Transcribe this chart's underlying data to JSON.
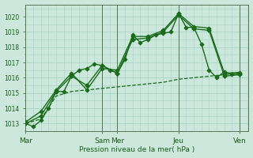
{
  "bg_color": "#cce8dc",
  "grid_color": "#a8d4c4",
  "line_color": "#1a6b1a",
  "marker_color": "#1a6b1a",
  "xlabel": "Pression niveau de la mer( hPa )",
  "xlabel_color": "#1a5c1a",
  "tick_color": "#1a5c1a",
  "ylim": [
    1012.5,
    1020.8
  ],
  "yticks": [
    1013,
    1014,
    1015,
    1016,
    1017,
    1018,
    1019,
    1020
  ],
  "day_labels": [
    "Mar",
    "Sam",
    "Mer",
    "Jeu",
    "Ven"
  ],
  "day_positions": [
    0,
    60,
    72,
    120,
    168
  ],
  "xlim": [
    0,
    175
  ],
  "series": [
    {
      "x": [
        0,
        6,
        12,
        18,
        24,
        30,
        36,
        42,
        48,
        54,
        60,
        66,
        72,
        78,
        84,
        90,
        96,
        102,
        108,
        114,
        120,
        126,
        132,
        138,
        144,
        150,
        156,
        162,
        168
      ],
      "y": [
        1013.0,
        1012.8,
        1013.2,
        1014.0,
        1015.1,
        1015.1,
        1016.1,
        1016.5,
        1016.6,
        1016.9,
        1016.8,
        1016.5,
        1016.3,
        1017.2,
        1018.8,
        1018.3,
        1018.5,
        1018.8,
        1018.9,
        1019.0,
        1020.2,
        1019.3,
        1019.3,
        1018.2,
        1016.5,
        1016.0,
        1016.4,
        1016.2,
        1016.3
      ],
      "marker": "D",
      "markersize": 2.5,
      "linewidth": 1.0
    },
    {
      "x": [
        0,
        12,
        24,
        36,
        48,
        60,
        72,
        84,
        96,
        108,
        120,
        132,
        144,
        156,
        168
      ],
      "y": [
        1013.0,
        1013.5,
        1015.1,
        1016.1,
        1015.5,
        1016.8,
        1016.3,
        1018.5,
        1018.6,
        1019.0,
        1020.1,
        1019.2,
        1019.1,
        1016.1,
        1016.2
      ],
      "marker": "P",
      "markersize": 3.5,
      "linewidth": 1.0
    },
    {
      "x": [
        0,
        12,
        24,
        36,
        48,
        60,
        72,
        84,
        96,
        108,
        120,
        132,
        144,
        156,
        168
      ],
      "y": [
        1013.1,
        1013.8,
        1015.2,
        1016.3,
        1015.2,
        1016.6,
        1016.5,
        1018.7,
        1018.7,
        1019.1,
        1020.2,
        1019.35,
        1019.25,
        1016.3,
        1016.35
      ],
      "marker": "D",
      "markersize": 2.5,
      "linewidth": 1.0
    },
    {
      "x": [
        0,
        12,
        24,
        36,
        48,
        60,
        72,
        84,
        96,
        108,
        120,
        132,
        144,
        156,
        168
      ],
      "y": [
        1013.0,
        1013.3,
        1014.8,
        1015.1,
        1015.2,
        1015.3,
        1015.4,
        1015.5,
        1015.6,
        1015.7,
        1015.9,
        1016.0,
        1016.1,
        1016.2,
        1016.3
      ],
      "marker": null,
      "markersize": 0,
      "linewidth": 0.9,
      "linestyle": "--"
    }
  ]
}
